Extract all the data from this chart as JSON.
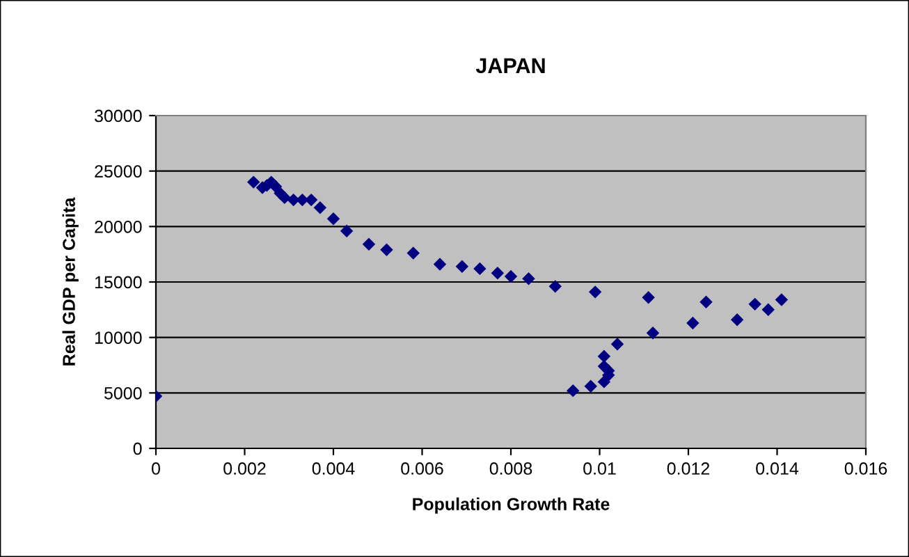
{
  "chart_data": {
    "type": "scatter",
    "title": "JAPAN",
    "xlabel": "Population Growth Rate",
    "ylabel": "Real GDP per Capita",
    "x": [
      0,
      0.0022,
      0.0024,
      0.0025,
      0.0026,
      0.0027,
      0.0028,
      0.0029,
      0.0031,
      0.0033,
      0.0035,
      0.0037,
      0.004,
      0.0043,
      0.0048,
      0.0052,
      0.0058,
      0.0064,
      0.0069,
      0.0073,
      0.0077,
      0.008,
      0.0084,
      0.009,
      0.0099,
      0.0111,
      0.0124,
      0.0135,
      0.0141,
      0.0138,
      0.0131,
      0.0121,
      0.0112,
      0.0104,
      0.0101,
      0.0101,
      0.0102,
      0.0102,
      0.0101,
      0.0098,
      0.0094
    ],
    "values": [
      4700,
      24000,
      23500,
      23700,
      24000,
      23600,
      23000,
      22600,
      22400,
      22400,
      22400,
      21700,
      20700,
      19600,
      18400,
      17900,
      17600,
      16600,
      16400,
      16200,
      15800,
      15500,
      15300,
      14600,
      14100,
      13600,
      13200,
      13000,
      13400,
      12500,
      11600,
      11300,
      10400,
      9400,
      8300,
      7400,
      7000,
      6600,
      6000,
      5600,
      5200
    ],
    "color": "#000080",
    "marker": "diamond",
    "xlim": [
      0,
      0.016
    ],
    "xticks": [
      0,
      0.002,
      0.004,
      0.006,
      0.008,
      0.01,
      0.012,
      0.014,
      0.016
    ],
    "ylim": [
      0,
      30000
    ],
    "yticks": [
      0,
      5000,
      10000,
      15000,
      20000,
      25000,
      30000
    ],
    "grid": "y",
    "legend": false
  }
}
